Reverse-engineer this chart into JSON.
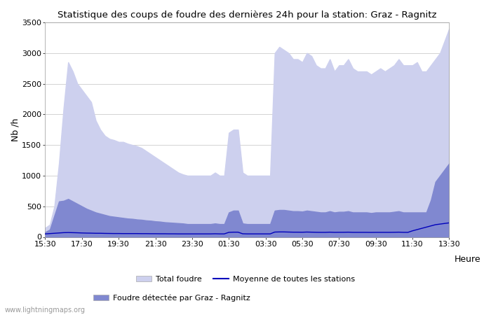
{
  "title": "Statistique des coups de foudre des dernières 24h pour la station: Graz - Ragnitz",
  "ylabel": "Nb /h",
  "xlabel": "Heure",
  "xlim_labels": [
    "15:30",
    "17:30",
    "19:30",
    "21:30",
    "23:30",
    "01:30",
    "03:30",
    "05:30",
    "07:30",
    "09:30",
    "11:30",
    "13:30",
    "13:30"
  ],
  "ylim": [
    0,
    3500
  ],
  "yticks": [
    0,
    500,
    1000,
    1500,
    2000,
    2500,
    3000,
    3500
  ],
  "color_total": "#cdd0ee",
  "color_detected": "#8088d0",
  "color_mean": "#0000bb",
  "watermark": "www.lightningmaps.org",
  "legend_total": "Total foudre",
  "legend_detected": "Foudre détectée par Graz - Ragnitz",
  "legend_mean": "Moyenne de toutes les stations",
  "background_color": "#ffffff",
  "total_foudre": [
    150,
    200,
    500,
    1200,
    2100,
    2850,
    2700,
    2500,
    2400,
    2300,
    2200,
    1900,
    1750,
    1650,
    1600,
    1580,
    1550,
    1550,
    1520,
    1500,
    1480,
    1450,
    1400,
    1350,
    1300,
    1250,
    1200,
    1150,
    1100,
    1050,
    1020,
    1000,
    1000,
    1000,
    1000,
    1000,
    1000,
    1050,
    1000,
    1000,
    1700,
    1750,
    1750,
    1050,
    1000,
    1000,
    1000,
    1000,
    1000,
    1000,
    3000,
    3100,
    3050,
    3000,
    2900,
    2900,
    2850,
    3000,
    2950,
    2800,
    2750,
    2750,
    2900,
    2700,
    2800,
    2800,
    2900,
    2750,
    2700,
    2700,
    2700,
    2650,
    2700,
    2750,
    2700,
    2750,
    2800,
    2900,
    2800,
    2800,
    2800,
    2850,
    2700,
    2700,
    2800,
    2900,
    3000,
    3200,
    3400
  ],
  "detected_foudre": [
    80,
    120,
    350,
    580,
    590,
    620,
    580,
    540,
    500,
    460,
    430,
    400,
    380,
    360,
    340,
    330,
    320,
    310,
    300,
    295,
    285,
    280,
    270,
    265,
    255,
    250,
    240,
    235,
    230,
    225,
    220,
    210,
    210,
    210,
    210,
    210,
    210,
    220,
    210,
    210,
    400,
    430,
    430,
    220,
    210,
    210,
    210,
    210,
    210,
    210,
    430,
    440,
    440,
    430,
    420,
    420,
    415,
    430,
    420,
    410,
    400,
    400,
    420,
    400,
    410,
    410,
    420,
    400,
    400,
    400,
    400,
    390,
    400,
    400,
    400,
    400,
    410,
    420,
    400,
    400,
    400,
    400,
    400,
    400,
    600,
    900,
    1000,
    1100,
    1200
  ],
  "mean_line": [
    50,
    55,
    60,
    65,
    70,
    72,
    70,
    68,
    65,
    63,
    62,
    60,
    60,
    58,
    57,
    56,
    56,
    55,
    55,
    55,
    55,
    54,
    54,
    53,
    53,
    52,
    52,
    51,
    51,
    50,
    50,
    50,
    50,
    50,
    50,
    50,
    50,
    52,
    50,
    50,
    75,
    78,
    78,
    52,
    50,
    50,
    50,
    50,
    50,
    50,
    80,
    82,
    82,
    80,
    78,
    78,
    77,
    80,
    78,
    76,
    75,
    75,
    78,
    75,
    76,
    76,
    78,
    75,
    75,
    75,
    75,
    74,
    75,
    75,
    75,
    75,
    76,
    78,
    75,
    75,
    100,
    120,
    140,
    160,
    180,
    200,
    210,
    220,
    230
  ]
}
